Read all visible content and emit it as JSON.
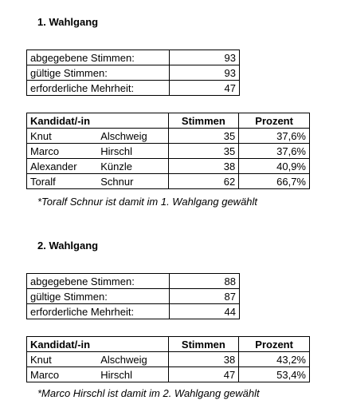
{
  "sections": [
    {
      "title": "1. Wahlgang",
      "summary": [
        [
          "abgegebene Stimmen:",
          "93"
        ],
        [
          "gültige Stimmen:",
          "93"
        ],
        [
          "erforderliche Mehrheit:",
          "47"
        ]
      ],
      "candidates": {
        "header": [
          "Kandidat/-in",
          "Stimmen",
          "Prozent"
        ],
        "rows": [
          [
            "Knut",
            "Alschweig",
            "35",
            "37,6%"
          ],
          [
            "Marco",
            "Hirschl",
            "35",
            "37,6%"
          ],
          [
            "Alexander",
            "Künzle",
            "38",
            "40,9%"
          ],
          [
            "Toralf",
            "Schnur",
            "62",
            "66,7%"
          ]
        ]
      },
      "note": "*Toralf Schnur ist damit im 1. Wahlgang gewählt"
    },
    {
      "title": "2. Wahlgang",
      "summary": [
        [
          "abgegebene Stimmen:",
          "88"
        ],
        [
          "gültige Stimmen:",
          "87"
        ],
        [
          "erforderliche Mehrheit:",
          "44"
        ]
      ],
      "candidates": {
        "header": [
          "Kandidat/-in",
          "Stimmen",
          "Prozent"
        ],
        "rows": [
          [
            "Knut",
            "Alschweig",
            "38",
            "43,2%"
          ],
          [
            "Marco",
            "Hirschl",
            "47",
            "53,4%"
          ]
        ]
      },
      "note": "*Marco Hirschl ist damit im 2. Wahlgang gewählt"
    }
  ]
}
